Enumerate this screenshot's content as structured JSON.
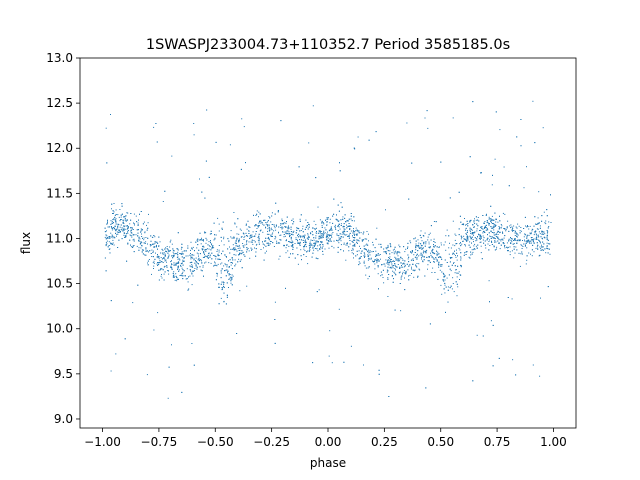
{
  "chart_data": {
    "type": "scatter",
    "title": "1SWASPJ233004.73+110352.7 Period 3585185.0s",
    "xlabel": "phase",
    "ylabel": "flux",
    "xlim": [
      -1.1,
      1.1
    ],
    "ylim": [
      8.9,
      13.0
    ],
    "xticks": [
      -1.0,
      -0.75,
      -0.5,
      -0.25,
      0.0,
      0.25,
      0.5,
      0.75,
      1.0
    ],
    "xtick_labels": [
      "−1.00",
      "−0.75",
      "−0.50",
      "−0.25",
      "0.00",
      "0.25",
      "0.50",
      "0.75",
      "1.00"
    ],
    "yticks": [
      9.0,
      9.5,
      10.0,
      10.5,
      11.0,
      11.5,
      12.0,
      12.5,
      13.0
    ],
    "ytick_labels": [
      "9.0",
      "9.5",
      "10.0",
      "10.5",
      "11.0",
      "11.5",
      "12.0",
      "12.5",
      "13.0"
    ],
    "grid": false,
    "marker_color": "#1f77b4",
    "series": [
      {
        "x": [
          -0.99,
          -0.96,
          -0.92,
          -0.88,
          -0.84,
          -0.8,
          -0.76,
          -0.73,
          -0.7,
          -0.67,
          -0.64,
          -0.6,
          -0.56,
          -0.52,
          -0.49,
          -0.46,
          -0.44,
          -0.41,
          -0.38,
          -0.34,
          -0.3,
          -0.27,
          -0.24,
          -0.21,
          -0.18,
          -0.15,
          -0.12,
          -0.08,
          -0.04,
          0.0,
          0.03,
          0.07,
          0.1,
          0.13,
          0.17,
          0.21,
          0.24,
          0.27,
          0.3,
          0.33,
          0.37,
          0.41,
          0.45,
          0.48,
          0.51,
          0.54,
          0.57,
          0.6,
          0.63,
          0.67,
          0.7,
          0.73,
          0.76,
          0.79,
          0.83,
          0.86,
          0.9,
          0.93,
          0.96,
          0.99
        ],
        "y": [
          11.0,
          11.1,
          11.15,
          11.1,
          11.05,
          10.95,
          10.8,
          10.75,
          10.75,
          10.75,
          10.7,
          10.75,
          10.85,
          10.9,
          10.85,
          10.6,
          10.7,
          10.85,
          10.95,
          11.0,
          11.05,
          11.1,
          11.1,
          11.05,
          11.05,
          11.0,
          11.0,
          11.0,
          11.0,
          11.05,
          11.1,
          11.1,
          11.05,
          10.95,
          10.85,
          10.8,
          10.75,
          10.75,
          10.75,
          10.7,
          10.75,
          10.85,
          10.9,
          10.85,
          10.6,
          10.7,
          10.85,
          10.95,
          11.0,
          11.05,
          11.1,
          11.1,
          11.05,
          11.05,
          11.0,
          11.0,
          11.0,
          11.0,
          11.0,
          11.0
        ]
      }
    ]
  }
}
